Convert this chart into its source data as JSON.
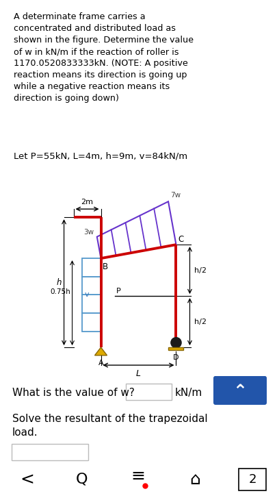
{
  "title_text": "A determinate frame carries a\nconcentrated and distributed load as\nshown in the figure. Determine the value\nof w in kN/m if the reaction of roller is\n1170.0520833333kN. (NOTE: A positive\nreaction means its direction is going up\nwhile a negative reaction means its\ndirection is going down)",
  "params_text": "Let P=55kN, L=4m, h=9m, v=84kN/m",
  "question_text": "What is the value of w?",
  "unit_text": "kN/m",
  "hint_text": "Solve the resultant of the trapezoidal\nload.",
  "frame_color": "#cc0000",
  "dist_load_color": "#6633cc",
  "blue_rect_color": "#5599cc",
  "support_pin_color": "#ddaa00",
  "roller_color": "#1a1a1a",
  "button_color": "#2255aa",
  "label_2m": "2m",
  "label_3w": "3w",
  "label_7w": "7w",
  "label_v": "v",
  "label_B": "B",
  "label_C": "C",
  "label_P": "P",
  "label_D": "D",
  "label_A": "A",
  "label_L": "L",
  "label_h": "h",
  "label_075h": "0.75h",
  "label_h2_top": "h/2",
  "label_h2_bot": "h/2"
}
